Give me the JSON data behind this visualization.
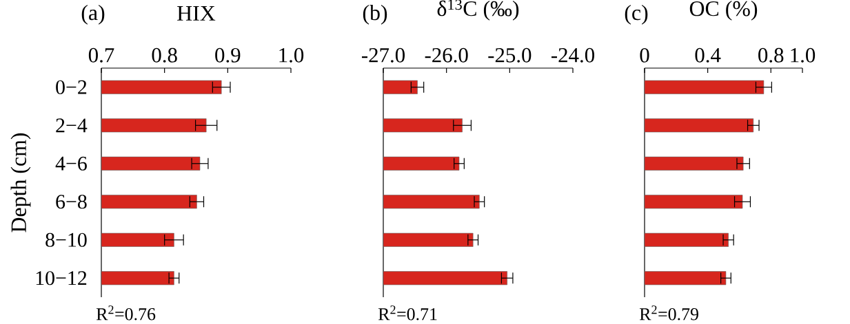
{
  "chart_data": [
    {
      "type": "bar",
      "orientation": "horizontal",
      "title": "HIX",
      "ylabel": "Depth (cm)",
      "categories": [
        "0−2",
        "2−4",
        "4−6",
        "6−8",
        "8−10",
        "10−12"
      ],
      "values": [
        0.89,
        0.866,
        0.856,
        0.851,
        0.815,
        0.815
      ],
      "errors": [
        0.014,
        0.017,
        0.013,
        0.011,
        0.015,
        0.008
      ],
      "color": "#d7261e",
      "xlim": [
        0.7,
        1.0
      ],
      "xticks": [
        0.7,
        0.8,
        0.9,
        {
          "value": 1.0,
          "label": "1.0"
        }
      ],
      "annotations": [
        "(a)",
        "R$^{2}$=0.76"
      ]
    },
    {
      "type": "bar",
      "orientation": "horizontal",
      "title": "δ$^{13}$C (‰)",
      "categories": [
        null,
        null,
        null,
        null,
        null,
        null
      ],
      "values": [
        0.54,
        1.25,
        1.2,
        1.52,
        1.42,
        1.96
      ],
      "base": [
        -27.0,
        -27.0,
        -27.0,
        -27.0,
        -27.0,
        -27.0
      ],
      "errors": [
        0.1,
        0.14,
        0.08,
        0.08,
        0.08,
        0.09
      ],
      "color": "#d7261e",
      "xlim": [
        -27.0,
        -24.0
      ],
      "xticks": [
        {
          "value": -27.0,
          "label": "-27.0"
        },
        {
          "value": -26.0,
          "label": "-26.0"
        },
        {
          "value": -25.0,
          "label": "-25.0"
        },
        {
          "value": -24.0,
          "label": "-24.0"
        }
      ],
      "tick_labels": "x",
      "annotations": [
        "(b)",
        "R$^{2}$=0.71"
      ]
    },
    {
      "type": "bar",
      "orientation": "horizontal",
      "title": "OC (%)",
      "categories": [
        null,
        null,
        null,
        null,
        null,
        null
      ],
      "values": [
        0.755,
        0.689,
        0.625,
        0.62,
        0.531,
        0.515
      ],
      "errors": [
        0.05,
        0.036,
        0.04,
        0.05,
        0.033,
        0.032
      ],
      "color": "#d7261e",
      "xlim": [
        0,
        1.0
      ],
      "xticks": [
        0,
        0.4,
        0.8,
        {
          "value": 1.0,
          "label": "1.0"
        }
      ],
      "tick_labels": "x",
      "annotations": [
        "(c)",
        "R$^{2}$=0.79"
      ]
    }
  ]
}
